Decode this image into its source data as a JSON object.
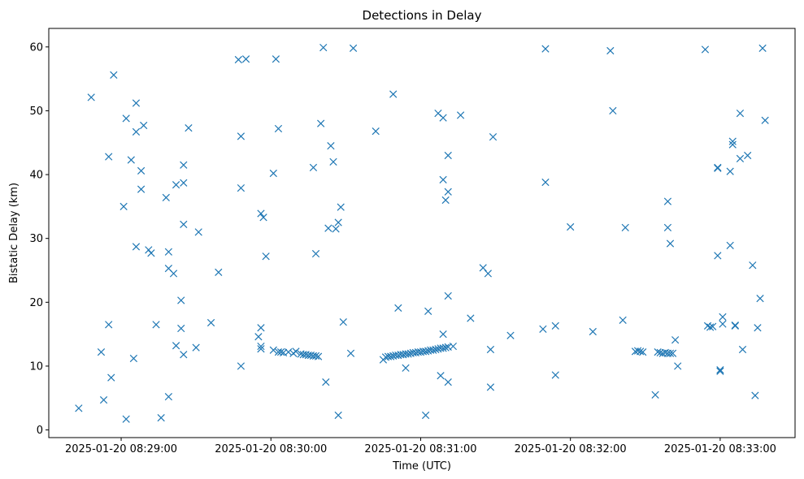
{
  "chart_data": {
    "type": "scatter",
    "title": "Detections in Delay",
    "xlabel": "Time (UTC)",
    "ylabel": "Bistatic Delay (km)",
    "marker": "x",
    "color": "#1f77b4",
    "grid": false,
    "legend": "none",
    "x_ticks": [
      "2025-01-20 08:29:00",
      "2025-01-20 08:30:00",
      "2025-01-20 08:31:00",
      "2025-01-20 08:32:00",
      "2025-01-20 08:33:00"
    ],
    "y_ticks": [
      0,
      10,
      20,
      30,
      40,
      50,
      60
    ],
    "xlim": [
      "2025-01-20 08:28:31",
      "2025-01-20 08:33:30"
    ],
    "ylim": [
      -1.2,
      62.9
    ],
    "points": [
      [
        "08:28:43",
        3.4
      ],
      [
        "08:28:48",
        52.1
      ],
      [
        "08:28:52",
        12.2
      ],
      [
        "08:28:53",
        4.7
      ],
      [
        "08:28:55",
        16.5
      ],
      [
        "08:28:55",
        42.8
      ],
      [
        "08:28:56",
        8.2
      ],
      [
        "08:28:57",
        55.6
      ],
      [
        "08:29:01",
        35.0
      ],
      [
        "08:29:02",
        48.8
      ],
      [
        "08:29:02",
        1.7
      ],
      [
        "08:29:04",
        42.3
      ],
      [
        "08:29:05",
        11.2
      ],
      [
        "08:29:06",
        46.7
      ],
      [
        "08:29:06",
        51.2
      ],
      [
        "08:29:06",
        28.7
      ],
      [
        "08:29:08",
        37.7
      ],
      [
        "08:29:08",
        40.6
      ],
      [
        "08:29:09",
        47.7
      ],
      [
        "08:29:11",
        28.2
      ],
      [
        "08:29:12",
        27.7
      ],
      [
        "08:29:14",
        16.5
      ],
      [
        "08:29:16",
        1.9
      ],
      [
        "08:29:18",
        36.4
      ],
      [
        "08:29:19",
        27.9
      ],
      [
        "08:29:19",
        5.2
      ],
      [
        "08:29:19",
        25.3
      ],
      [
        "08:29:21",
        24.5
      ],
      [
        "08:29:22",
        38.4
      ],
      [
        "08:29:22",
        13.2
      ],
      [
        "08:29:24",
        15.9
      ],
      [
        "08:29:24",
        20.3
      ],
      [
        "08:29:25",
        41.5
      ],
      [
        "08:29:25",
        11.8
      ],
      [
        "08:29:25",
        38.7
      ],
      [
        "08:29:25",
        32.2
      ],
      [
        "08:29:27",
        47.3
      ],
      [
        "08:29:30",
        12.9
      ],
      [
        "08:29:31",
        31.0
      ],
      [
        "08:29:36",
        16.8
      ],
      [
        "08:29:39",
        24.7
      ],
      [
        "08:29:47",
        58.0
      ],
      [
        "08:29:48",
        46.0
      ],
      [
        "08:29:48",
        37.9
      ],
      [
        "08:29:48",
        10.0
      ],
      [
        "08:29:50",
        58.1
      ],
      [
        "08:29:55",
        14.6
      ],
      [
        "08:29:56",
        33.9
      ],
      [
        "08:29:56",
        12.7
      ],
      [
        "08:29:56",
        13.1
      ],
      [
        "08:29:56",
        16.0
      ],
      [
        "08:29:57",
        33.3
      ],
      [
        "08:29:58",
        27.2
      ],
      [
        "08:30:01",
        40.2
      ],
      [
        "08:30:01",
        12.5
      ],
      [
        "08:30:02",
        58.1
      ],
      [
        "08:30:03",
        47.2
      ],
      [
        "08:30:03",
        12.2
      ],
      [
        "08:30:04",
        12.2
      ],
      [
        "08:30:05",
        12.1
      ],
      [
        "08:30:07",
        12.2
      ],
      [
        "08:30:09",
        12.0
      ],
      [
        "08:30:10",
        12.3
      ],
      [
        "08:30:12",
        11.9
      ],
      [
        "08:30:13",
        11.8
      ],
      [
        "08:30:14",
        11.8
      ],
      [
        "08:30:15",
        11.7
      ],
      [
        "08:30:16",
        11.7
      ],
      [
        "08:30:17",
        41.1
      ],
      [
        "08:30:17",
        11.6
      ],
      [
        "08:30:18",
        27.6
      ],
      [
        "08:30:18",
        11.6
      ],
      [
        "08:30:19",
        11.5
      ],
      [
        "08:30:20",
        48.0
      ],
      [
        "08:30:21",
        59.9
      ],
      [
        "08:30:22",
        7.5
      ],
      [
        "08:30:23",
        31.6
      ],
      [
        "08:30:24",
        44.5
      ],
      [
        "08:30:25",
        42.0
      ],
      [
        "08:30:26",
        31.5
      ],
      [
        "08:30:27",
        32.5
      ],
      [
        "08:30:27",
        2.3
      ],
      [
        "08:30:28",
        34.9
      ],
      [
        "08:30:29",
        16.9
      ],
      [
        "08:30:32",
        12.0
      ],
      [
        "08:30:33",
        59.8
      ],
      [
        "08:30:42",
        46.8
      ],
      [
        "08:30:45",
        11.0
      ],
      [
        "08:30:46",
        11.4
      ],
      [
        "08:30:47",
        11.5
      ],
      [
        "08:30:48",
        11.5
      ],
      [
        "08:30:49",
        11.6
      ],
      [
        "08:30:50",
        11.7
      ],
      [
        "08:30:51",
        11.7
      ],
      [
        "08:30:52",
        11.8
      ],
      [
        "08:30:53",
        11.8
      ],
      [
        "08:30:54",
        11.9
      ],
      [
        "08:30:55",
        11.9
      ],
      [
        "08:30:56",
        12.0
      ],
      [
        "08:30:57",
        12.1
      ],
      [
        "08:30:58",
        12.1
      ],
      [
        "08:30:59",
        12.2
      ],
      [
        "08:31:00",
        12.2
      ],
      [
        "08:31:01",
        12.3
      ],
      [
        "08:31:02",
        12.3
      ],
      [
        "08:31:03",
        12.4
      ],
      [
        "08:31:04",
        12.5
      ],
      [
        "08:31:05",
        12.5
      ],
      [
        "08:31:06",
        12.6
      ],
      [
        "08:31:07",
        12.7
      ],
      [
        "08:31:08",
        12.8
      ],
      [
        "08:31:09",
        12.8
      ],
      [
        "08:31:10",
        12.9
      ],
      [
        "08:31:11",
        13.0
      ],
      [
        "08:31:13",
        13.1
      ],
      [
        "08:30:49",
        52.6
      ],
      [
        "08:30:51",
        19.1
      ],
      [
        "08:30:54",
        9.7
      ],
      [
        "08:31:02",
        2.3
      ],
      [
        "08:31:03",
        18.6
      ],
      [
        "08:31:07",
        49.6
      ],
      [
        "08:31:08",
        8.5
      ],
      [
        "08:31:09",
        48.9
      ],
      [
        "08:31:09",
        39.2
      ],
      [
        "08:31:09",
        15.0
      ],
      [
        "08:31:10",
        36.0
      ],
      [
        "08:31:11",
        37.3
      ],
      [
        "08:31:11",
        43.0
      ],
      [
        "08:31:11",
        21.0
      ],
      [
        "08:31:11",
        7.5
      ],
      [
        "08:31:16",
        49.3
      ],
      [
        "08:31:20",
        17.5
      ],
      [
        "08:31:25",
        25.4
      ],
      [
        "08:31:27",
        24.5
      ],
      [
        "08:31:28",
        12.6
      ],
      [
        "08:31:28",
        6.7
      ],
      [
        "08:31:29",
        45.9
      ],
      [
        "08:31:36",
        14.8
      ],
      [
        "08:31:49",
        15.8
      ],
      [
        "08:31:50",
        59.7
      ],
      [
        "08:31:50",
        38.8
      ],
      [
        "08:31:54",
        16.3
      ],
      [
        "08:31:54",
        8.6
      ],
      [
        "08:32:00",
        31.8
      ],
      [
        "08:32:09",
        15.4
      ],
      [
        "08:32:16",
        59.4
      ],
      [
        "08:32:17",
        50.0
      ],
      [
        "08:32:21",
        17.2
      ],
      [
        "08:32:22",
        31.7
      ],
      [
        "08:32:26",
        12.3
      ],
      [
        "08:32:27",
        12.4
      ],
      [
        "08:32:28",
        12.3
      ],
      [
        "08:32:29",
        12.2
      ],
      [
        "08:32:34",
        5.5
      ],
      [
        "08:32:35",
        12.2
      ],
      [
        "08:32:36",
        12.1
      ],
      [
        "08:32:37",
        12.0
      ],
      [
        "08:32:38",
        12.1
      ],
      [
        "08:32:39",
        12.0
      ],
      [
        "08:32:40",
        12.0
      ],
      [
        "08:32:41",
        12.0
      ],
      [
        "08:32:39",
        35.8
      ],
      [
        "08:32:39",
        31.7
      ],
      [
        "08:32:40",
        29.2
      ],
      [
        "08:32:42",
        14.1
      ],
      [
        "08:32:43",
        10.0
      ],
      [
        "08:32:54",
        59.6
      ],
      [
        "08:32:55",
        16.3
      ],
      [
        "08:32:56",
        16.1
      ],
      [
        "08:32:57",
        16.2
      ],
      [
        "08:32:59",
        27.3
      ],
      [
        "08:32:59",
        41.1
      ],
      [
        "08:32:59",
        41.0
      ],
      [
        "08:33:00",
        9.4
      ],
      [
        "08:33:00",
        9.2
      ],
      [
        "08:33:01",
        17.7
      ],
      [
        "08:33:01",
        16.6
      ],
      [
        "08:33:04",
        40.5
      ],
      [
        "08:33:04",
        28.9
      ],
      [
        "08:33:05",
        45.2
      ],
      [
        "08:33:05",
        44.7
      ],
      [
        "08:33:06",
        16.4
      ],
      [
        "08:33:06",
        16.3
      ],
      [
        "08:33:08",
        49.6
      ],
      [
        "08:33:08",
        42.5
      ],
      [
        "08:33:09",
        12.6
      ],
      [
        "08:33:11",
        43.0
      ],
      [
        "08:33:13",
        25.8
      ],
      [
        "08:33:14",
        5.4
      ],
      [
        "08:33:15",
        16.0
      ],
      [
        "08:33:16",
        20.6
      ],
      [
        "08:33:17",
        59.8
      ],
      [
        "08:33:18",
        48.5
      ]
    ]
  }
}
